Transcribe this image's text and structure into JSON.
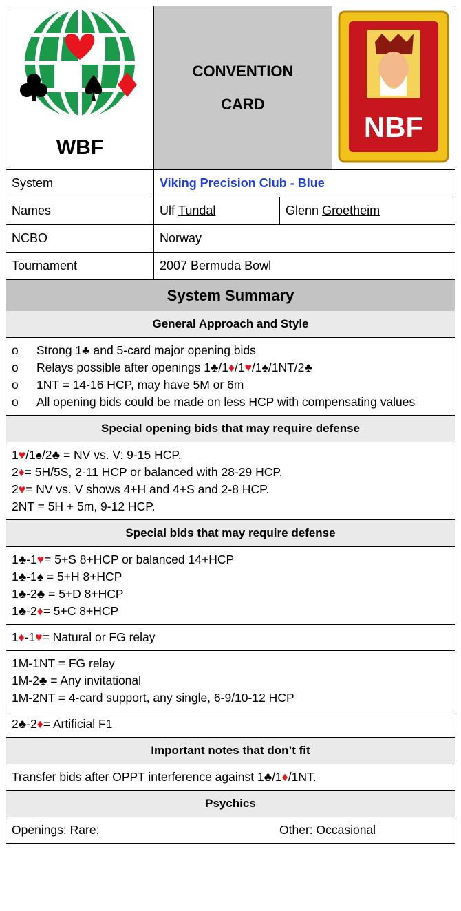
{
  "header": {
    "logo_left": "WBF",
    "title_lines": [
      "CONVENTION",
      "CARD"
    ],
    "logo_right": "NBF"
  },
  "system": {
    "label": "System",
    "value": "Viking Precision Club - Blue"
  },
  "names": {
    "label": "Names",
    "players": [
      {
        "first": "Ulf",
        "last": "Tundal"
      },
      {
        "first": "Glenn",
        "last": "Groetheim"
      }
    ]
  },
  "ncbo": {
    "label": "NCBO",
    "value": "Norway"
  },
  "tournament": {
    "label": "Tournament",
    "value": "2007 Bermuda Bowl"
  },
  "summary": {
    "title": "System Summary",
    "sections": [
      {
        "heading": "General Approach and Style",
        "bullet": "o",
        "groups": [
          [
            "Strong 1♣ and 5-card major opening bids",
            "Relays possible after openings 1♣/1♦/1♥/1♠/1NT/2♣",
            "1NT = 14-16 HCP, may have 5M or 6m",
            "All opening bids could be made on less HCP with compensating values"
          ]
        ]
      },
      {
        "heading": "Special opening bids that may require defense",
        "groups": [
          [
            "1♥/1♠/2♣ = NV vs. V: 9-15 HCP.",
            "2♦  = 5H/5S, 2-11 HCP or balanced with 28-29 HCP.",
            "2♥  = NV vs. V shows 4+H and 4+S and 2-8 HCP.",
            "2NT = 5H + 5m, 9-12 HCP."
          ]
        ]
      },
      {
        "heading": "Special bids that may require defense",
        "groups": [
          [
            "1♣-1♥ = 5+S 8+HCP or balanced 14+HCP",
            "1♣-1♠ = 5+H 8+HCP",
            "1♣-2♣ = 5+D 8+HCP",
            "1♣-2♦ = 5+C 8+HCP"
          ],
          [
            "1♦-1♥ = Natural or FG relay"
          ],
          [
            "1M-1NT = FG relay",
            "1M-2♣  = Any invitational",
            "1M-2NT = 4-card support, any single, 6-9/10-12 HCP"
          ],
          [
            "2♣-2♦ = Artificial F1"
          ]
        ]
      },
      {
        "heading": "Important notes that don’t fit",
        "groups": [
          [
            "Transfer bids after OPPT interference against 1♣/1♦/1NT."
          ]
        ]
      },
      {
        "heading": "Psychics",
        "groups": [
          [
            [
              "Openings: Rare;",
              "Other: Occasional"
            ]
          ]
        ]
      }
    ]
  }
}
